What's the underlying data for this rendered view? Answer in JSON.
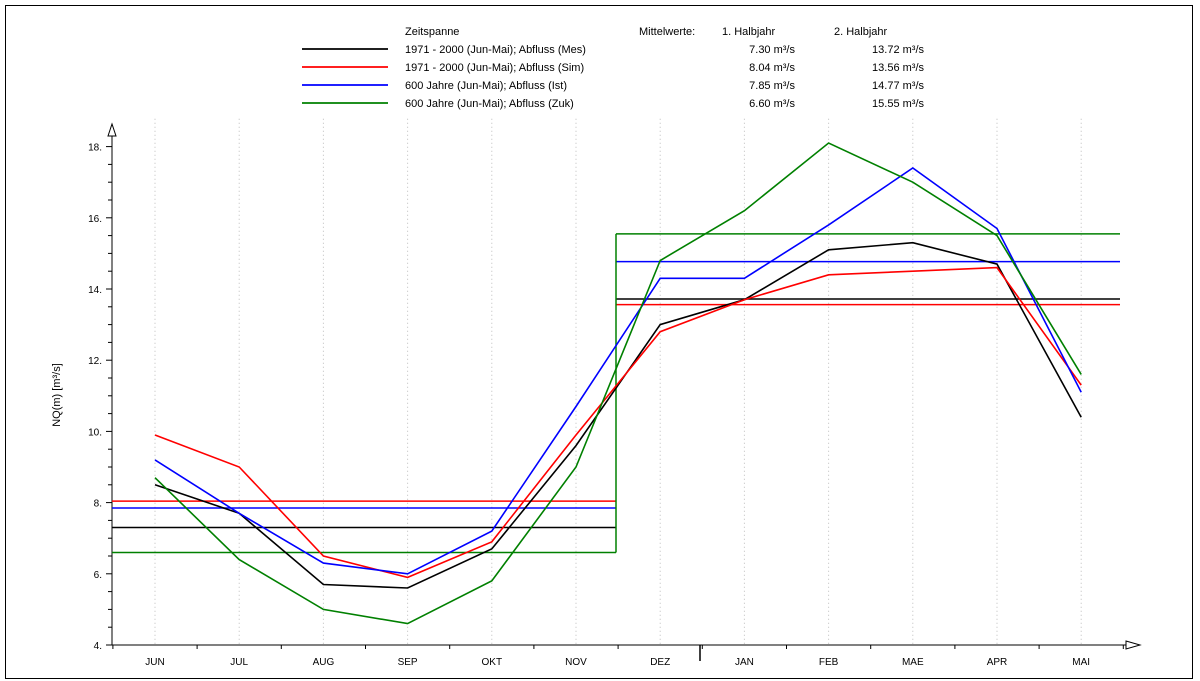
{
  "chart_data": {
    "type": "line",
    "title": "",
    "xlabel": "",
    "ylabel": "NQ(m) [m³/s]",
    "ylim": [
      4,
      18.5
    ],
    "yticks": [
      4,
      6,
      8,
      10,
      12,
      14,
      16,
      18
    ],
    "ytick_labels": [
      "4.",
      "6.",
      "8.",
      "10.",
      "12.",
      "14.",
      "16.",
      "18."
    ],
    "categories": [
      "JUN",
      "JUL",
      "AUG",
      "SEP",
      "OKT",
      "NOV",
      "DEZ",
      "JAN",
      "FEB",
      "MAE",
      "APR",
      "MAI"
    ],
    "grid": "vertical dotted",
    "legend": {
      "position": "top",
      "header_period": "Zeitspanne",
      "header_means": "Mittelwerte:",
      "header_h1": "1. Halbjahr",
      "header_h2": "2. Halbjahr"
    },
    "series": [
      {
        "name": "1971 - 2000 (Jun-Mai); Abfluss (Mes)",
        "color": "#000000",
        "values": [
          8.5,
          7.7,
          5.7,
          5.6,
          6.7,
          9.6,
          13.0,
          13.7,
          15.1,
          15.3,
          14.7,
          10.4
        ],
        "mean_h1": 7.3,
        "mean_h2": 13.72,
        "mean_h1_label": "7.30 m³/s",
        "mean_h2_label": "13.72 m³/s"
      },
      {
        "name": "1971 - 2000 (Jun-Mai); Abfluss (Sim)",
        "color": "#ff0000",
        "values": [
          9.9,
          9.0,
          6.5,
          5.9,
          6.9,
          9.9,
          12.8,
          13.7,
          14.4,
          14.5,
          14.6,
          11.3
        ],
        "mean_h1": 8.04,
        "mean_h2": 13.56,
        "mean_h1_label": "8.04 m³/s",
        "mean_h2_label": "13.56 m³/s"
      },
      {
        "name": "600 Jahre (Jun-Mai); Abfluss (Ist)",
        "color": "#0000ff",
        "values": [
          9.2,
          7.7,
          6.3,
          6.0,
          7.2,
          10.7,
          14.3,
          14.3,
          15.8,
          17.4,
          15.7,
          11.1
        ],
        "mean_h1": 7.85,
        "mean_h2": 14.77,
        "mean_h1_label": "7.85 m³/s",
        "mean_h2_label": "14.77 m³/s"
      },
      {
        "name": "600 Jahre (Jun-Mai); Abfluss (Zuk)",
        "color": "#008000",
        "values": [
          8.7,
          6.4,
          5.0,
          4.6,
          5.8,
          9.0,
          14.8,
          16.2,
          18.1,
          17.0,
          15.5,
          11.6
        ],
        "mean_h1": 6.6,
        "mean_h2": 15.55,
        "mean_h1_label": "6.60 m³/s",
        "mean_h2_label": "15.55 m³/s"
      }
    ]
  }
}
